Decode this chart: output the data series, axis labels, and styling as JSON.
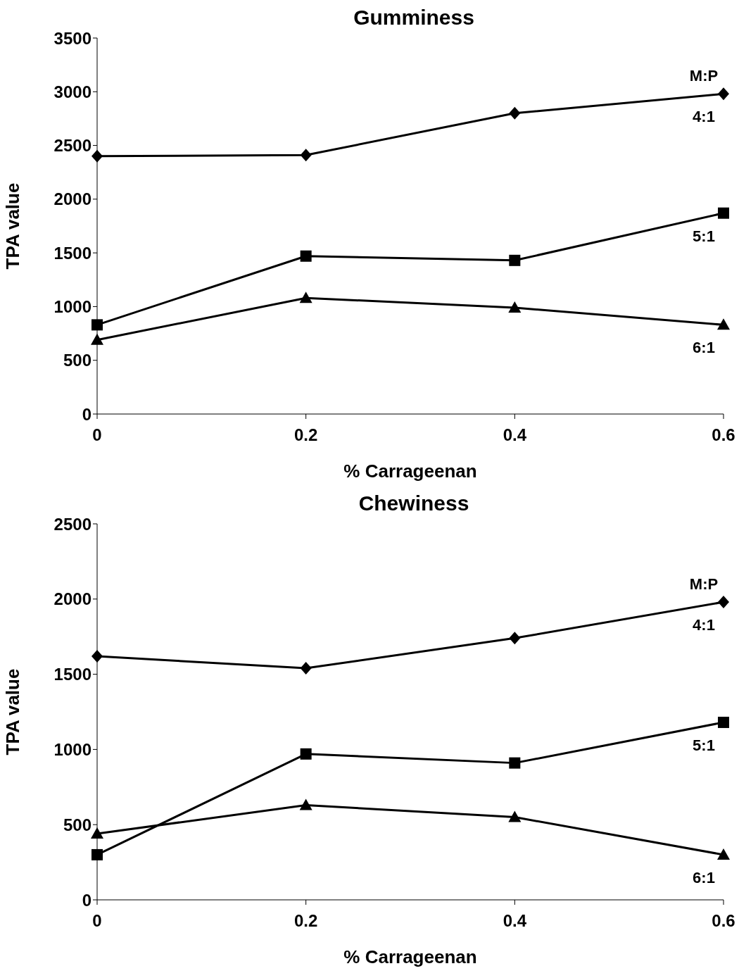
{
  "chart_data": [
    {
      "type": "line",
      "title": "Gumminess",
      "xlabel": "% Carrageenan",
      "ylabel": "TPA value",
      "x": [
        0,
        0.2,
        0.4,
        0.6
      ],
      "xlim": [
        0,
        0.6
      ],
      "xticks": [
        0,
        0.2,
        0.4,
        0.6
      ],
      "ylim": [
        0,
        3500
      ],
      "yticks": [
        0,
        500,
        1000,
        1500,
        2000,
        2500,
        3000,
        3500
      ],
      "grid": false,
      "legend": false,
      "annotations": [
        "M:P"
      ],
      "series": [
        {
          "name": "4:1",
          "color": "#000000",
          "marker": "diamond",
          "values": [
            2400,
            2410,
            2800,
            2980
          ]
        },
        {
          "name": "5:1",
          "color": "#000000",
          "marker": "square",
          "values": [
            830,
            1470,
            1430,
            1870
          ]
        },
        {
          "name": "6:1",
          "color": "#000000",
          "marker": "triangle",
          "values": [
            690,
            1080,
            990,
            830
          ]
        }
      ]
    },
    {
      "type": "line",
      "title": "Chewiness",
      "xlabel": "% Carrageenan",
      "ylabel": "TPA value",
      "x": [
        0,
        0.2,
        0.4,
        0.6
      ],
      "xlim": [
        0,
        0.6
      ],
      "xticks": [
        0,
        0.2,
        0.4,
        0.6
      ],
      "ylim": [
        0,
        2500
      ],
      "yticks": [
        0,
        500,
        1000,
        1500,
        2000,
        2500
      ],
      "grid": false,
      "legend": false,
      "annotations": [
        "M:P"
      ],
      "series": [
        {
          "name": "4:1",
          "color": "#000000",
          "marker": "diamond",
          "values": [
            1620,
            1540,
            1740,
            1980
          ]
        },
        {
          "name": "5:1",
          "color": "#000000",
          "marker": "square",
          "values": [
            300,
            970,
            910,
            1180
          ]
        },
        {
          "name": "6:1",
          "color": "#000000",
          "marker": "triangle",
          "values": [
            440,
            630,
            550,
            300
          ]
        }
      ]
    }
  ]
}
